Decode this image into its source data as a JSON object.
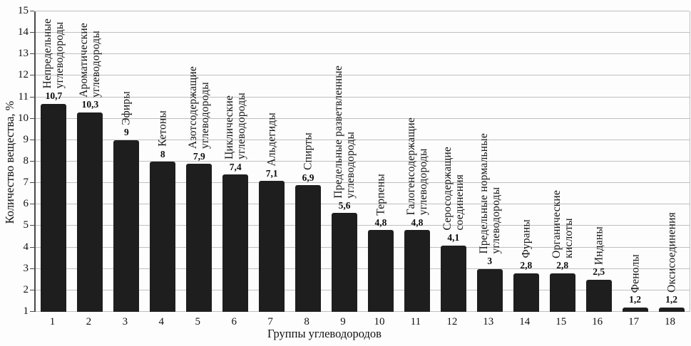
{
  "chart_data": {
    "type": "bar",
    "title": "",
    "xlabel": "Группы углеводородов",
    "ylabel": "Количество вещества, %",
    "ylim": [
      1,
      15
    ],
    "baseline": 1,
    "grid": "horizontal gridlines at every integer from 1 to 15",
    "legend_position": "none",
    "bar_color": "#1e1e1e",
    "gridline_color": "#bfbfbf",
    "y_ticks": [
      1,
      2,
      3,
      4,
      5,
      6,
      7,
      8,
      9,
      10,
      11,
      12,
      13,
      14,
      15
    ],
    "x_ticks": [
      "1",
      "2",
      "3",
      "4",
      "5",
      "6",
      "7",
      "8",
      "9",
      "10",
      "11",
      "12",
      "13",
      "14",
      "15",
      "16",
      "17",
      "18"
    ],
    "categories": [
      "Непредельные углеводороды",
      "Ароматические углеводороды",
      "Эфиры",
      "Кетоны",
      "Азотсодержащие углеводороды",
      "Циклические углеводороды",
      "Альдегиды",
      "Спирты",
      "Предельные разветвленные углеводороды",
      "Терпены",
      "Галогенсодержащие углеводороды",
      "Серосодержащие соединения",
      "Предельные нормальные углеводороды",
      "Фураны",
      "Органические кислоты",
      "Инданы",
      "Фенолы",
      "Оксисоединения"
    ],
    "category_labels_display": [
      "Непредельные\nуглеводороды",
      "Ароматические\nуглеводороды",
      "Эфиры",
      "Кетоны",
      "Азотсодержащие\nуглеводороды",
      "Циклические\nуглеводороды",
      "Альдегиды",
      "Спирты",
      "Предельные разветвленные\nуглеводороды",
      "Терпены",
      "Галогенсодержащие\nуглеводороды",
      "Серосодержащие\nсоединения",
      "Предельные нормальные\nуглеводороды",
      "Фураны",
      "Органические\nкислоты",
      "Инданы",
      "Фенолы",
      "Оксисоединения"
    ],
    "values": [
      10.7,
      10.3,
      9,
      8,
      7.9,
      7.4,
      7.1,
      6.9,
      5.6,
      4.8,
      4.8,
      4.1,
      3,
      2.8,
      2.8,
      2.5,
      1.2,
      1.2
    ],
    "value_labels": [
      "10,7",
      "10,3",
      "9",
      "8",
      "7,9",
      "7,4",
      "7,1",
      "6,9",
      "5,6",
      "4,8",
      "4,8",
      "4,1",
      "3",
      "2,8",
      "2,8",
      "2,5",
      "1,2",
      "1,2"
    ]
  }
}
